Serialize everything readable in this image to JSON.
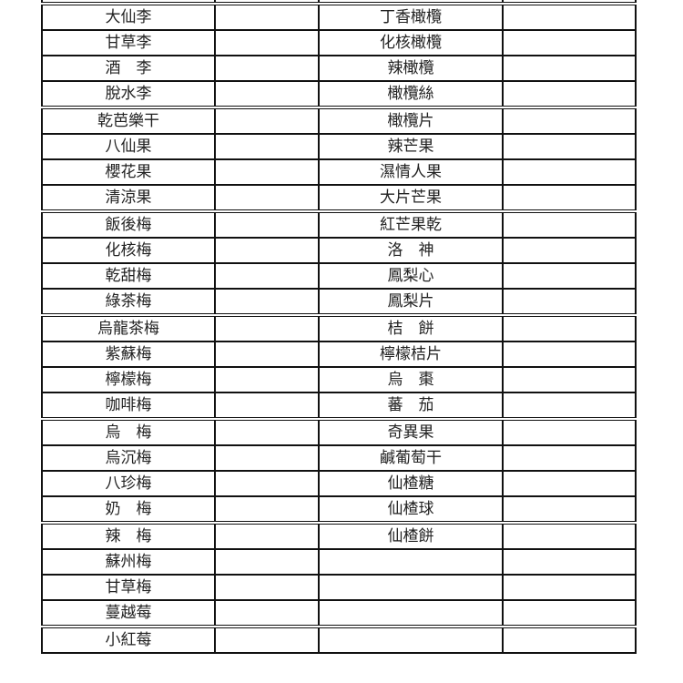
{
  "table": {
    "rows": [
      [
        "",
        "",
        "",
        ""
      ],
      [
        "大仙李",
        "",
        "丁香橄欖",
        ""
      ],
      [
        "甘草李",
        "",
        "化核橄欖",
        ""
      ],
      [
        "酒　李",
        "",
        "辣橄欖",
        ""
      ],
      [
        "脫水李",
        "",
        "橄欖絲",
        ""
      ],
      [
        "乾芭樂干",
        "",
        "橄欖片",
        ""
      ],
      [
        "八仙果",
        "",
        "辣芒果",
        ""
      ],
      [
        "櫻花果",
        "",
        "濕情人果",
        ""
      ],
      [
        "清涼果",
        "",
        "大片芒果",
        ""
      ],
      [
        "飯後梅",
        "",
        "紅芒果乾",
        ""
      ],
      [
        "化核梅",
        "",
        "洛　神",
        ""
      ],
      [
        "乾甜梅",
        "",
        "鳳梨心",
        ""
      ],
      [
        "綠茶梅",
        "",
        "鳳梨片",
        ""
      ],
      [
        "烏龍茶梅",
        "",
        "桔　餅",
        ""
      ],
      [
        "紫蘇梅",
        "",
        "檸檬桔片",
        ""
      ],
      [
        "檸檬梅",
        "",
        "烏　棗",
        ""
      ],
      [
        "咖啡梅",
        "",
        "蕃　茄",
        ""
      ],
      [
        "烏　梅",
        "",
        "奇異果",
        ""
      ],
      [
        "烏沉梅",
        "",
        "鹹葡萄干",
        ""
      ],
      [
        "八珍梅",
        "",
        "仙楂糖",
        ""
      ],
      [
        "奶　梅",
        "",
        "仙楂球",
        ""
      ],
      [
        "辣　梅",
        "",
        "仙楂餅",
        ""
      ],
      [
        "蘇州梅",
        "",
        "",
        ""
      ],
      [
        "甘草梅",
        "",
        "",
        ""
      ],
      [
        "蔓越莓",
        "",
        "",
        ""
      ],
      [
        "小紅莓",
        "",
        "",
        ""
      ]
    ]
  }
}
